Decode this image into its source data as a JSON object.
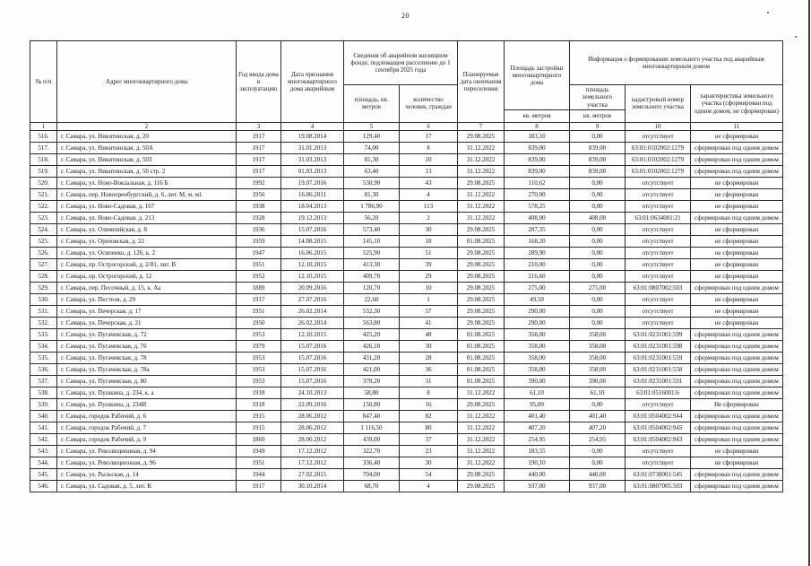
{
  "page": {
    "number": "20"
  },
  "table": {
    "header": {
      "col_no": "№ п/п",
      "col_address": "Адрес многоквартирного дома",
      "col_year": "Год ввода дома в эксплуатацию",
      "col_date_recognized": "Дата признания многоквартирного дома аварийным",
      "col_fund_group": "Сведения об аварийном жилищном фонде, подлежащем расселению до 1 сентября 2025 года",
      "col_fund_area": "площадь, кв. метров",
      "col_fund_people": "количество человек, граждан",
      "col_resettle_date": "Планируемая дата окончания переселения",
      "col_building_area": "Площадь застройки многоквартирного дома",
      "col_building_area_unit": "кв. метров",
      "col_land_group": "Информация о формировании земельного участка под аварийным многоквартирным домом",
      "col_land_area": "площадь земельного участка",
      "col_land_area_unit": "кв. метров",
      "col_cadastral": "кадастровый номер земельного участка",
      "col_characteristic": "характеристика земельного участка (сформирован под одним домом, не сформирован)",
      "numbering": [
        "1",
        "2",
        "3",
        "4",
        "5",
        "6",
        "7",
        "8",
        "9",
        "10",
        "11"
      ]
    },
    "rows": [
      [
        "516.",
        "г. Самара, ул. Никитинская, д. 20",
        "1917",
        "19.08.2014",
        "129,40",
        "17",
        "29.08.2025",
        "183,10",
        "0,00",
        "отсутствует",
        "не сформирован"
      ],
      [
        "517.",
        "г. Самара, ул. Никитинская, д. 50А",
        "1917",
        "31.01.2013",
        "74,00",
        "8",
        "31.12.2022",
        "839,00",
        "839,00",
        "63:01:0102002:1279",
        "сформирован под одним домом"
      ],
      [
        "518.",
        "г. Самара, ул. Никитинская, д. 503",
        "1917",
        "31.03.2013",
        "81,30",
        "10",
        "31.12.2022",
        "839,00",
        "839,00",
        "63:01:0102002:1279",
        "сформирован под одним домом"
      ],
      [
        "519.",
        "г. Самара, ул. Никитинская, д. 50 стр. 2",
        "1917",
        "01.03.2013",
        "63,40",
        "13",
        "31.12.2022",
        "839,00",
        "839,00",
        "63:01:0102002:1279",
        "сформирован под одним домом"
      ],
      [
        "520.",
        "г. Самара, ул. Ново-Вокзальная, д. 116 Б",
        "1992",
        "19.07.2016",
        "530,90",
        "43",
        "29.08.2025",
        "110,62",
        "0,00",
        "отсутствует",
        "не сформирован"
      ],
      [
        "521.",
        "г. Самара, пер. Новооренбургский, д. 6, лит. М, м, м1",
        "1956",
        "16.06.2011",
        "81,30",
        "4",
        "31.12.2022",
        "270,00",
        "0,00",
        "отсутствует",
        "не сформирован"
      ],
      [
        "522.",
        "г. Самара, ул. Ново-Садовая, д. 167",
        "1938",
        "18.04.2013",
        "1 786,90",
        "113",
        "31.12.2022",
        "578,25",
        "0,00",
        "отсутствует",
        "не сформирован"
      ],
      [
        "523.",
        "г. Самара, ул. Ново-Садовая, д. 213",
        "1928",
        "19.12.2013",
        "56,20",
        "2",
        "31.12.2022",
        "408,00",
        "408,00",
        "63:01:0634001:21",
        "сформирован под одним домом"
      ],
      [
        "524.",
        "г. Самара, ул. Олимпийская, д. 8",
        "1936",
        "15.07.2016",
        "573,40",
        "30",
        "29.08.2025",
        "287,35",
        "0,00",
        "отсутствует",
        "не сформирован"
      ],
      [
        "525.",
        "г. Самара, ул. Ореховская, д. 22",
        "1959",
        "14.08.2015",
        "145,10",
        "18",
        "01.08.2025",
        "168,20",
        "0,00",
        "отсутствует",
        "не сформирован"
      ],
      [
        "526.",
        "г. Самара, ул. Осипенко, д. 126, к. 2",
        "1947",
        "16.06.2015",
        "525,90",
        "51",
        "29.08.2025",
        "289,90",
        "0,00",
        "отсутствует",
        "не сформирован"
      ],
      [
        "527.",
        "г. Самара, пр. Острогорский, д. 2/81, лит. В",
        "1951",
        "12.10.2015",
        "413,30",
        "39",
        "29.08.2025",
        "210,00",
        "0,00",
        "отсутствует",
        "не сформирован"
      ],
      [
        "528.",
        "г. Самара, пр. Острогорский, д. 12",
        "1952",
        "12.10.2015",
        "409,70",
        "29",
        "29.08.2025",
        "216,60",
        "0,00",
        "отсутствует",
        "не сформирован"
      ],
      [
        "529.",
        "г. Самара, пер. Песочный, д. 15, к. Аа",
        "1889",
        "20.09.2016",
        "120,70",
        "10",
        "29.08.2025",
        "275,00",
        "275,00",
        "63:01:0807002:503",
        "сформирован под одним домом"
      ],
      [
        "530.",
        "г. Самара, ул. Пестеля, д. 29",
        "1917",
        "27.07.2016",
        "22,60",
        "1",
        "29.08.2025",
        "49,50",
        "0,00",
        "отсутствует",
        "не сформирован"
      ],
      [
        "531.",
        "г. Самара, ул. Печерская, д. 17",
        "1951",
        "26.02.2014",
        "532,30",
        "57",
        "29.08.2025",
        "290,00",
        "0,00",
        "отсутствует",
        "не сформирован"
      ],
      [
        "532.",
        "г. Самара, ул. Печерская, д. 21",
        "1950",
        "26.02.2014",
        "563,80",
        "41",
        "29.08.2025",
        "290,00",
        "0,00",
        "отсутствует",
        "не сформирован"
      ],
      [
        "533.",
        "г. Самара, ул. Пугачевская, д. 72",
        "1953",
        "12.10.2015",
        "425,20",
        "48",
        "01.08.2025",
        "358,00",
        "358,00",
        "63:01:0231001:599",
        "сформирован под одним домом"
      ],
      [
        "534.",
        "г. Самара, ул. Пугачевская, д. 76",
        "1979",
        "15.07.2016",
        "426,10",
        "30",
        "01.08.2025",
        "358,00",
        "358,00",
        "63:01:0231001:598",
        "сформирован под одним домом"
      ],
      [
        "535.",
        "г. Самара, ул. Пугачевская, д. 78",
        "1953",
        "15.07.2016",
        "431,20",
        "28",
        "01.08.2025",
        "358,00",
        "358,00",
        "63:01:0231001:559",
        "сформирован под одним домом"
      ],
      [
        "536.",
        "г. Самара, ул. Пугачевская, д. 78а",
        "1953",
        "15.07.2016",
        "421,00",
        "36",
        "01.08.2025",
        "358,00",
        "358,00",
        "63:01:0231001:558",
        "сформирован под одним домом"
      ],
      [
        "537.",
        "г. Самара, ул. Пугачевская, д. 80",
        "1953",
        "15.07.2016",
        "378,20",
        "31",
        "01.08.2025",
        "390,00",
        "390,00",
        "63:01:0231001:591",
        "сформирован под одним домом"
      ],
      [
        "538.",
        "г. Самара, ул. Пушкина, д. 234, к. а",
        "1918",
        "24.10.2013",
        "58,80",
        "8",
        "31.12.2022",
        "61,10",
        "61,10",
        "63:01:0516001:6",
        "сформирован под одним домом"
      ],
      [
        "539.",
        "г. Самара, ул. Пушкина, д. 234И",
        "1918",
        "22.09.2016",
        "150,80",
        "16",
        "29.08.2025",
        "95,00",
        "0,00",
        "отсутствует",
        "Не сформирован"
      ],
      [
        "540.",
        "г. Самара, городок Рабочий, д. 6",
        "1915",
        "28.06.2012",
        "847,40",
        "82",
        "31.12.2022",
        "401,40",
        "401,40",
        "63:01:0504002:944",
        "сформирован под одним домом"
      ],
      [
        "541.",
        "г. Самара, городок Рабочий, д. 7",
        "1915",
        "28.06.2012",
        "1 116,50",
        "80",
        "31.12.2022",
        "407,20",
        "407,20",
        "63:01:0504002:945",
        "сформирован под одним домом"
      ],
      [
        "542.",
        "г. Самара, городок Рабочий, д. 9",
        "1869",
        "28.06.2012",
        "439,00",
        "37",
        "31.12.2022",
        "254,95",
        "254,95",
        "63:01:0504002:943",
        "сформирован под одним домом"
      ],
      [
        "543.",
        "г. Самара, ул. Революционная, д. 94",
        "1949",
        "17.12.2012",
        "322,70",
        "23",
        "31.12.2022",
        "183,55",
        "0,00",
        "отсутствует",
        "не сформирован"
      ],
      [
        "544.",
        "г. Самара, ул. Революционная, д. 96",
        "1951",
        "17.12.2012",
        "336,40",
        "30",
        "31.12.2022",
        "190,10",
        "0,00",
        "отсутствует",
        "не сформирован"
      ],
      [
        "545.",
        "г. Самара, ул. Рыльская, д. 14",
        "1944",
        "27.02.2015",
        "704,00",
        "54",
        "29.08.2025",
        "440,00",
        "440,00",
        "63:01:0738001:545",
        "сформирован под одним домом"
      ],
      [
        "546.",
        "г. Самара, ул. Садовая, д. 5, лит. К",
        "1917",
        "30.10.2014",
        "68,70",
        "4",
        "29.08.2025",
        "937,00",
        "937,00",
        "63:01:0807005:503",
        "сформирован под одним домом"
      ]
    ]
  }
}
